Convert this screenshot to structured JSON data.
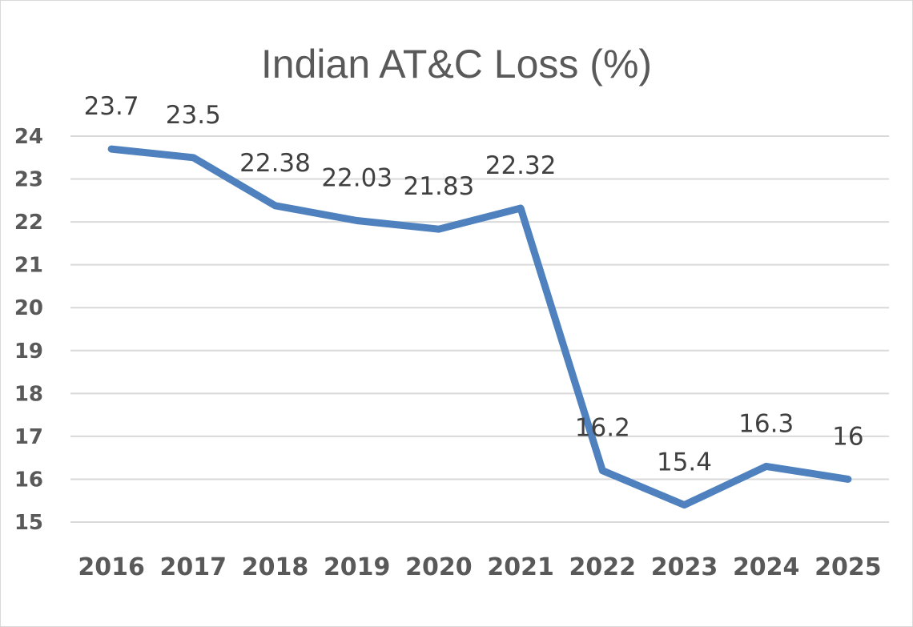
{
  "chart_data": {
    "type": "line",
    "title": "Indian AT&C Loss (%)",
    "xlabel": "",
    "ylabel": "",
    "categories": [
      "2016",
      "2017",
      "2018",
      "2019",
      "2020",
      "2021",
      "2022",
      "2023",
      "2024",
      "2025"
    ],
    "series": [
      {
        "values": [
          23.7,
          23.5,
          22.38,
          22.03,
          21.83,
          22.32,
          16.2,
          15.4,
          16.3,
          16
        ],
        "data_labels": [
          "23.7",
          "23.5",
          "22.38",
          "22.03",
          "21.83",
          "22.32",
          "16.2",
          "15.4",
          "16.3",
          "16"
        ],
        "color": "#4e81bd"
      }
    ],
    "ylim": [
      15,
      24
    ],
    "yticks": [
      "15",
      "16",
      "17",
      "18",
      "19",
      "20",
      "21",
      "22",
      "23",
      "24"
    ],
    "grid": true,
    "legend": "none"
  }
}
